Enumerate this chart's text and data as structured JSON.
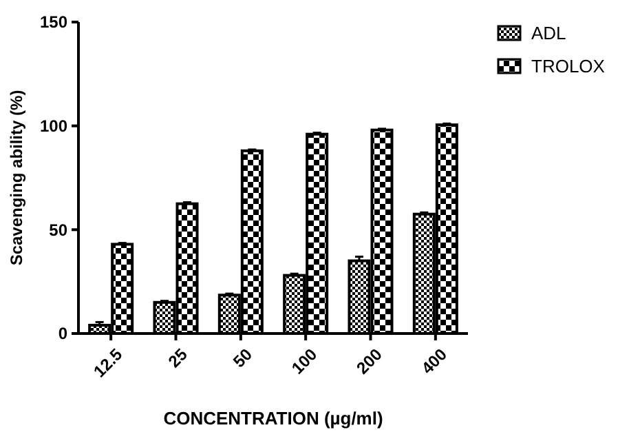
{
  "chart_data": {
    "type": "bar",
    "xlabel": "CONCENTRATION (µg/ml)",
    "ylabel": "Scavenging ability (%)",
    "categories": [
      "12.5",
      "25",
      "50",
      "100",
      "200",
      "400"
    ],
    "series": [
      {
        "name": "ADL",
        "color": "#000000",
        "values": [
          4,
          15,
          18.5,
          28,
          35,
          57.5
        ],
        "errors": [
          1.5,
          0.7,
          0.7,
          0.8,
          2,
          0.8
        ]
      },
      {
        "name": "TROLOX",
        "color": "#000000",
        "values": [
          43,
          62.5,
          88,
          96,
          98,
          100.5
        ],
        "errors": [
          0.6,
          0.7,
          0.6,
          0.7,
          0.6,
          0.6
        ]
      }
    ],
    "ylim": [
      0,
      150
    ],
    "yticks": [
      0,
      50,
      100,
      150
    ],
    "grid": false,
    "legend": "top right"
  }
}
